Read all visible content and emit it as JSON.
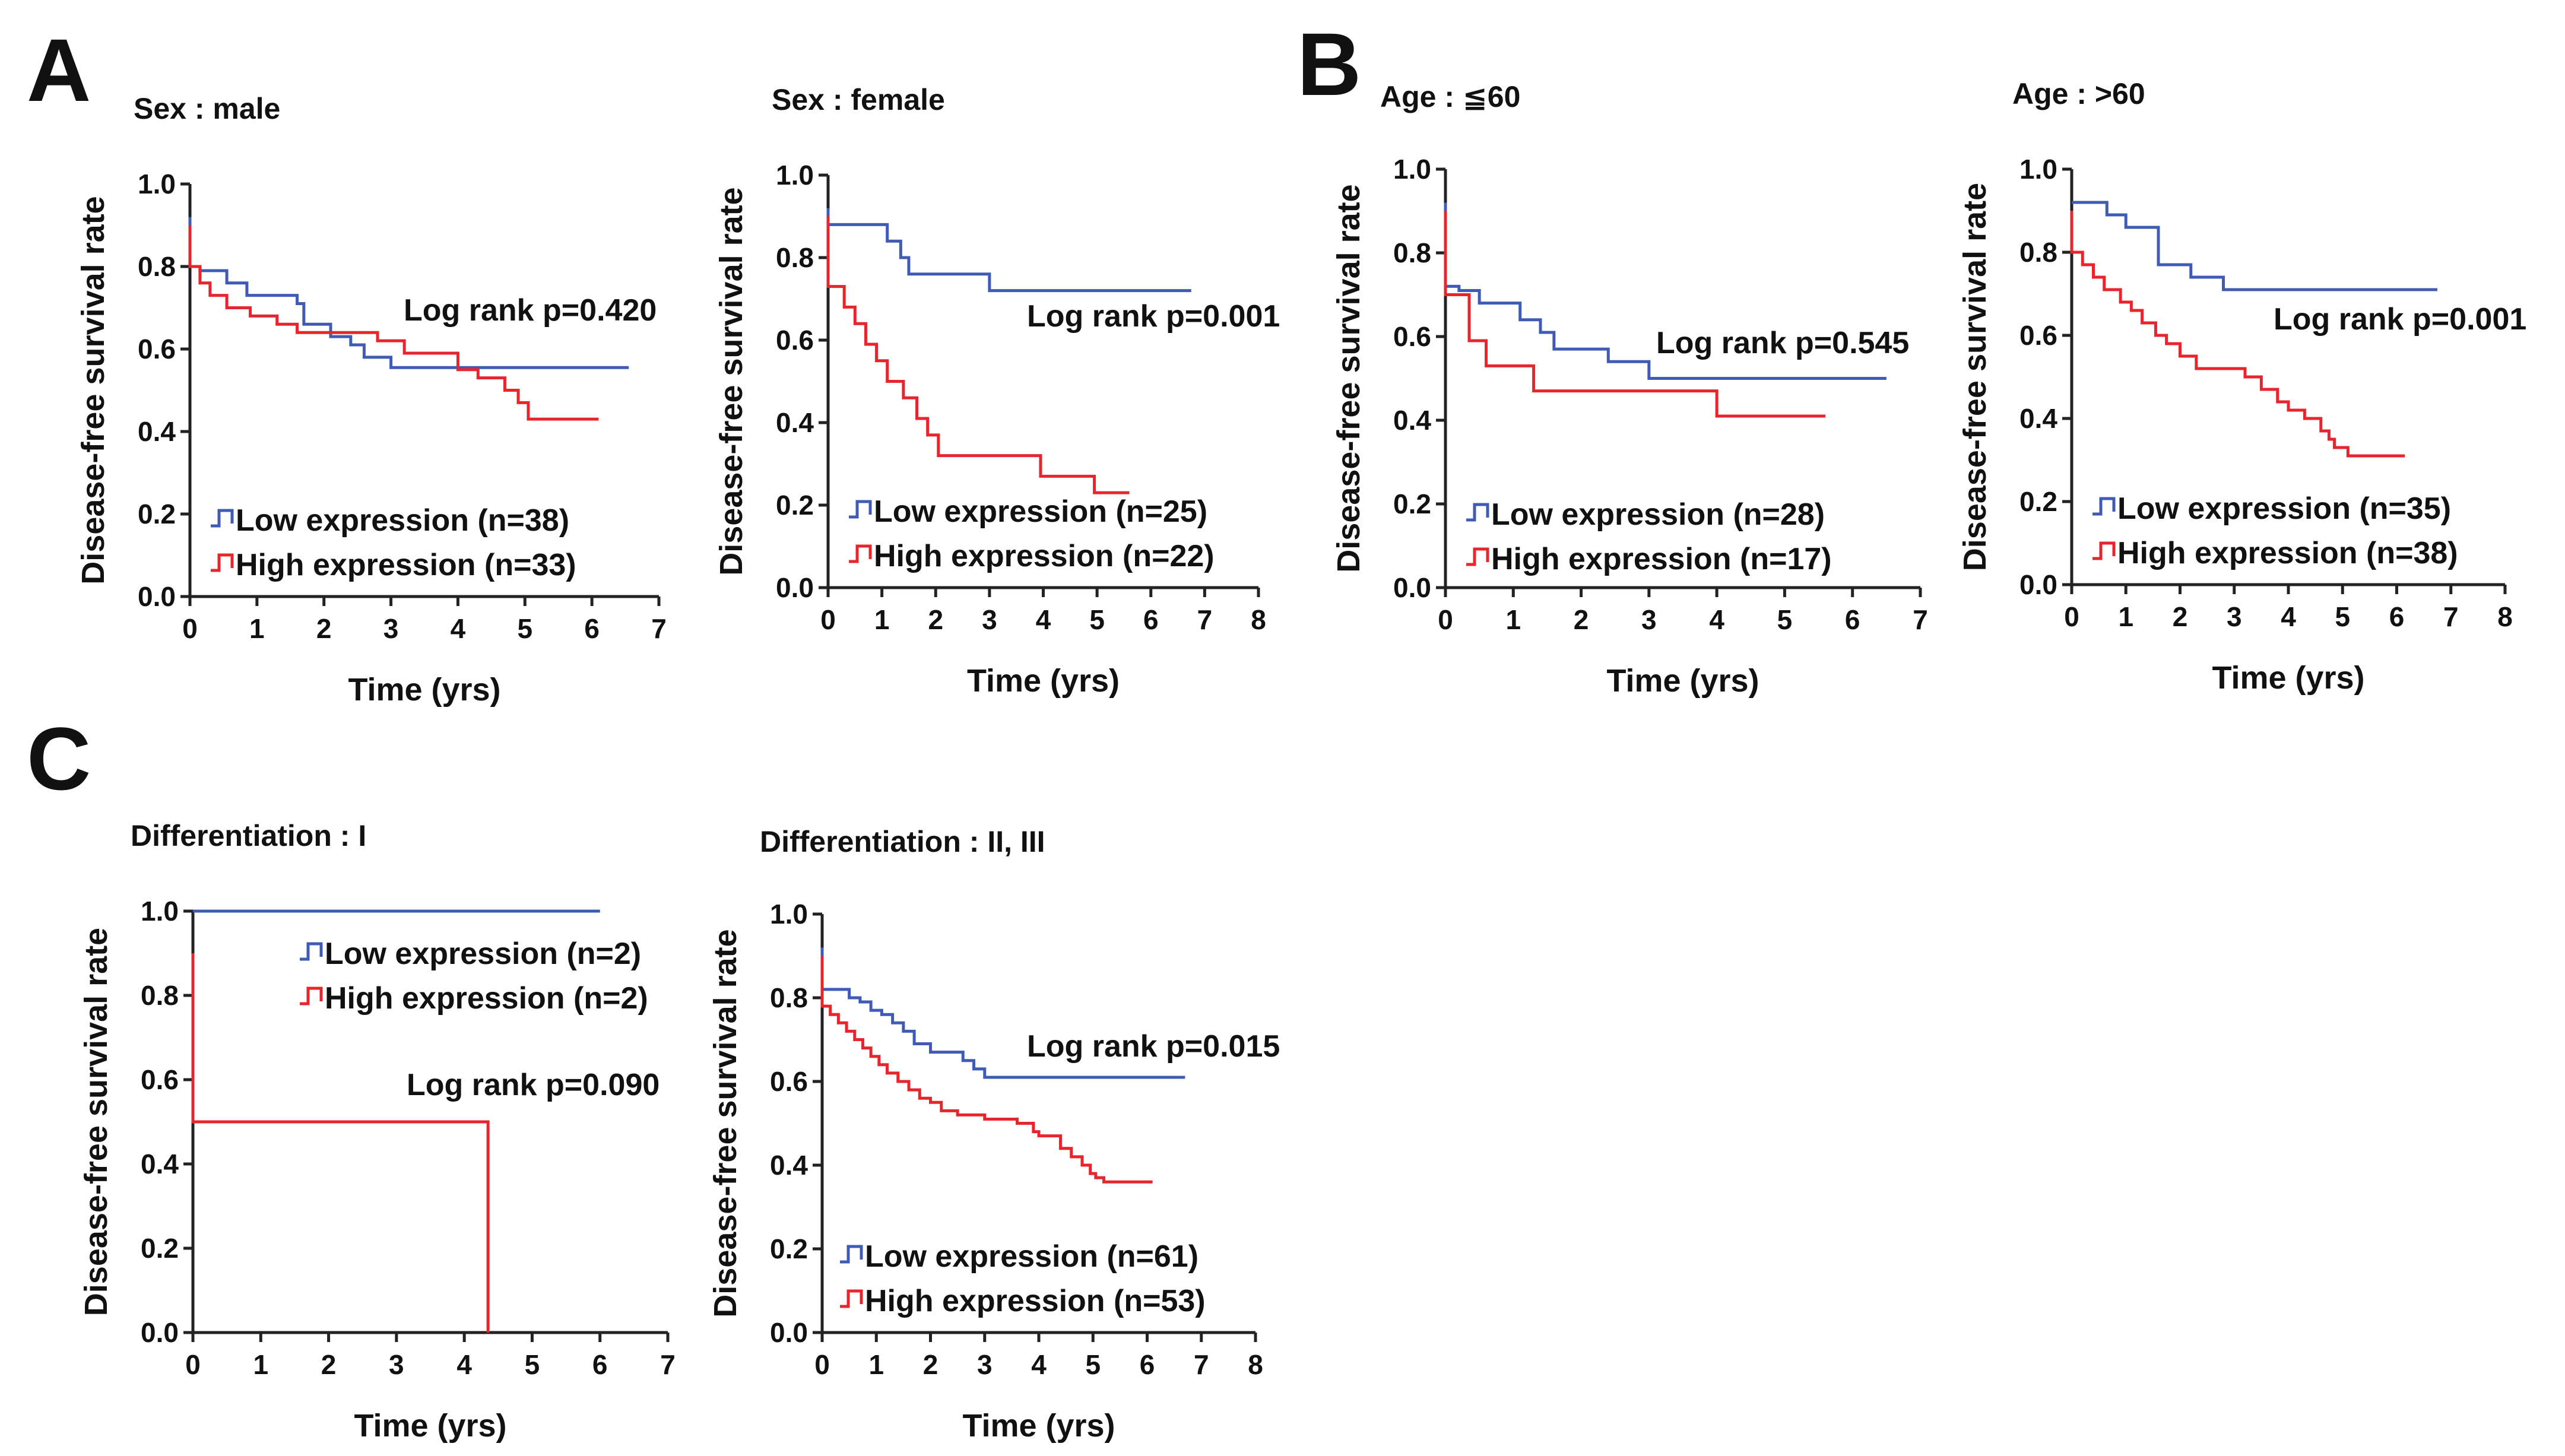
{
  "panel_letters": [
    "A",
    "B",
    "C"
  ],
  "colors": {
    "low": "#3f5bb5",
    "high": "#e8242c",
    "axis": "#222222"
  },
  "chart_data": [
    {
      "type": "line",
      "subtype": "kaplan-meier",
      "title": "Sex : male",
      "xlabel": "Time (yrs)",
      "ylabel": "Disease-free survival rate",
      "xlim": [
        0,
        7
      ],
      "ylim": [
        0,
        1
      ],
      "xticks": [
        "0",
        "1",
        "2",
        "3",
        "4",
        "5",
        "6",
        "7"
      ],
      "yticks": [
        "0.0",
        "0.2",
        "0.4",
        "0.6",
        "0.8",
        "1.0"
      ],
      "annotation": "Log rank p=0.420",
      "series": [
        {
          "name": "Low expression (n=38)",
          "color": "#3f5bb5",
          "x": [
            0,
            0.15,
            0.55,
            0.85,
            1.6,
            1.7,
            2.1,
            2.4,
            2.6,
            3.0,
            4.0,
            6.55
          ],
          "y": [
            0.8,
            0.79,
            0.76,
            0.73,
            0.71,
            0.66,
            0.63,
            0.61,
            0.58,
            0.555,
            0.555,
            0.555
          ]
        },
        {
          "name": "High expression (n=33)",
          "color": "#e8242c",
          "x": [
            0,
            0.15,
            0.3,
            0.55,
            0.9,
            1.3,
            1.6,
            2.0,
            2.8,
            3.2,
            4.0,
            4.3,
            4.7,
            4.9,
            5.05,
            5.3,
            6.1
          ],
          "y": [
            0.8,
            0.76,
            0.73,
            0.7,
            0.68,
            0.66,
            0.64,
            0.64,
            0.62,
            0.59,
            0.55,
            0.53,
            0.5,
            0.47,
            0.43,
            0.43,
            0.43
          ]
        }
      ]
    },
    {
      "type": "line",
      "subtype": "kaplan-meier",
      "title": "Sex : female",
      "xlabel": "Time (yrs)",
      "ylabel": "Disease-free survival rate",
      "xlim": [
        0,
        8
      ],
      "ylim": [
        0,
        1
      ],
      "xticks": [
        "0",
        "1",
        "2",
        "3",
        "4",
        "5",
        "6",
        "7",
        "8"
      ],
      "yticks": [
        "0.0",
        "0.2",
        "0.4",
        "0.6",
        "0.8",
        "1.0"
      ],
      "annotation": "Log rank p=0.001",
      "series": [
        {
          "name": "Low expression (n=25)",
          "color": "#3f5bb5",
          "x": [
            0,
            1.1,
            1.35,
            1.5,
            3.0,
            6.75
          ],
          "y": [
            0.88,
            0.84,
            0.8,
            0.76,
            0.72,
            0.72
          ]
        },
        {
          "name": "High expression (n=22)",
          "color": "#e8242c",
          "x": [
            0,
            0.3,
            0.5,
            0.7,
            0.9,
            1.1,
            1.4,
            1.65,
            1.85,
            2.05,
            2.3,
            3.95,
            4.95,
            5.6
          ],
          "y": [
            0.73,
            0.68,
            0.64,
            0.59,
            0.55,
            0.5,
            0.46,
            0.41,
            0.37,
            0.32,
            0.32,
            0.27,
            0.23,
            0.23
          ]
        }
      ]
    },
    {
      "type": "line",
      "subtype": "kaplan-meier",
      "title": "Age : ≦60",
      "xlabel": "Time (yrs)",
      "ylabel": "Disease-free survival rate",
      "xlim": [
        0,
        7
      ],
      "ylim": [
        0,
        1
      ],
      "xticks": [
        "0",
        "1",
        "2",
        "3",
        "4",
        "5",
        "6",
        "7"
      ],
      "yticks": [
        "0.0",
        "0.2",
        "0.4",
        "0.6",
        "0.8",
        "1.0"
      ],
      "annotation": "Log rank p=0.545",
      "series": [
        {
          "name": "Low expression (n=28)",
          "color": "#3f5bb5",
          "x": [
            0,
            0.2,
            0.5,
            1.1,
            1.4,
            1.6,
            2.4,
            3.0,
            6.5
          ],
          "y": [
            0.72,
            0.71,
            0.68,
            0.64,
            0.61,
            0.57,
            0.54,
            0.5,
            0.5
          ]
        },
        {
          "name": "High expression (n=17)",
          "color": "#e8242c",
          "x": [
            0,
            0.35,
            0.6,
            1.3,
            4.0,
            5.6
          ],
          "y": [
            0.7,
            0.59,
            0.53,
            0.47,
            0.41,
            0.41
          ]
        }
      ]
    },
    {
      "type": "line",
      "subtype": "kaplan-meier",
      "title": "Age : >60",
      "xlabel": "Time (yrs)",
      "ylabel": "Disease-free survival rate",
      "xlim": [
        0,
        8
      ],
      "ylim": [
        0,
        1
      ],
      "xticks": [
        "0",
        "1",
        "2",
        "3",
        "4",
        "5",
        "6",
        "7",
        "8"
      ],
      "yticks": [
        "0.0",
        "0.2",
        "0.4",
        "0.6",
        "0.8",
        "1.0"
      ],
      "annotation": "Log rank p=0.001",
      "series": [
        {
          "name": "Low expression (n=35)",
          "color": "#3f5bb5",
          "x": [
            0,
            0.65,
            1.0,
            1.6,
            2.2,
            2.8,
            6.75
          ],
          "y": [
            0.92,
            0.89,
            0.86,
            0.77,
            0.74,
            0.71,
            0.71
          ]
        },
        {
          "name": "High expression (n=38)",
          "color": "#e8242c",
          "x": [
            0,
            0.2,
            0.4,
            0.6,
            0.9,
            1.1,
            1.3,
            1.55,
            1.75,
            2.0,
            2.3,
            3.2,
            3.5,
            3.8,
            4.0,
            4.3,
            4.6,
            4.75,
            4.85,
            4.95,
            5.1,
            6.15
          ],
          "y": [
            0.8,
            0.77,
            0.74,
            0.71,
            0.68,
            0.66,
            0.63,
            0.6,
            0.58,
            0.55,
            0.52,
            0.5,
            0.47,
            0.44,
            0.42,
            0.4,
            0.37,
            0.35,
            0.33,
            0.33,
            0.31,
            0.31
          ]
        }
      ]
    },
    {
      "type": "line",
      "subtype": "kaplan-meier",
      "title": "Differentiation : I",
      "xlabel": "Time (yrs)",
      "ylabel": "Disease-free survival rate",
      "xlim": [
        0,
        7
      ],
      "ylim": [
        0,
        1
      ],
      "xticks": [
        "0",
        "1",
        "2",
        "3",
        "4",
        "5",
        "6",
        "7"
      ],
      "yticks": [
        "0.0",
        "0.2",
        "0.4",
        "0.6",
        "0.8",
        "1.0"
      ],
      "annotation": "Log rank p=0.090",
      "series": [
        {
          "name": "Low expression (n=2)",
          "color": "#3f5bb5",
          "x": [
            0,
            6.0
          ],
          "y": [
            1.0,
            1.0
          ]
        },
        {
          "name": "High expression (n=2)",
          "color": "#e8242c",
          "x": [
            0,
            4.35
          ],
          "y": [
            0.5,
            0.0
          ]
        }
      ]
    },
    {
      "type": "line",
      "subtype": "kaplan-meier",
      "title": "Differentiation : II, III",
      "xlabel": "Time (yrs)",
      "ylabel": "Disease-free survival rate",
      "xlim": [
        0,
        8
      ],
      "ylim": [
        0,
        1
      ],
      "xticks": [
        "0",
        "1",
        "2",
        "3",
        "4",
        "5",
        "6",
        "7",
        "8"
      ],
      "yticks": [
        "0.0",
        "0.2",
        "0.4",
        "0.6",
        "0.8",
        "1.0"
      ],
      "annotation": "Log rank p=0.015",
      "series": [
        {
          "name": "Low expression (n=61)",
          "color": "#3f5bb5",
          "x": [
            0,
            0.5,
            0.7,
            0.9,
            1.1,
            1.3,
            1.5,
            1.7,
            2.0,
            2.6,
            2.8,
            3.0,
            6.7
          ],
          "y": [
            0.82,
            0.8,
            0.79,
            0.77,
            0.76,
            0.74,
            0.72,
            0.69,
            0.67,
            0.65,
            0.63,
            0.61,
            0.61
          ]
        },
        {
          "name": "High expression (n=53)",
          "color": "#e8242c",
          "x": [
            0,
            0.15,
            0.3,
            0.45,
            0.6,
            0.75,
            0.9,
            1.05,
            1.2,
            1.4,
            1.6,
            1.8,
            2.0,
            2.2,
            2.5,
            3.0,
            3.6,
            3.9,
            4.0,
            4.4,
            4.6,
            4.8,
            4.95,
            5.05,
            5.2,
            6.1
          ],
          "y": [
            0.78,
            0.76,
            0.74,
            0.72,
            0.7,
            0.68,
            0.66,
            0.64,
            0.62,
            0.6,
            0.58,
            0.56,
            0.55,
            0.53,
            0.52,
            0.51,
            0.5,
            0.48,
            0.47,
            0.44,
            0.42,
            0.4,
            0.38,
            0.37,
            0.36,
            0.36
          ]
        }
      ]
    }
  ]
}
